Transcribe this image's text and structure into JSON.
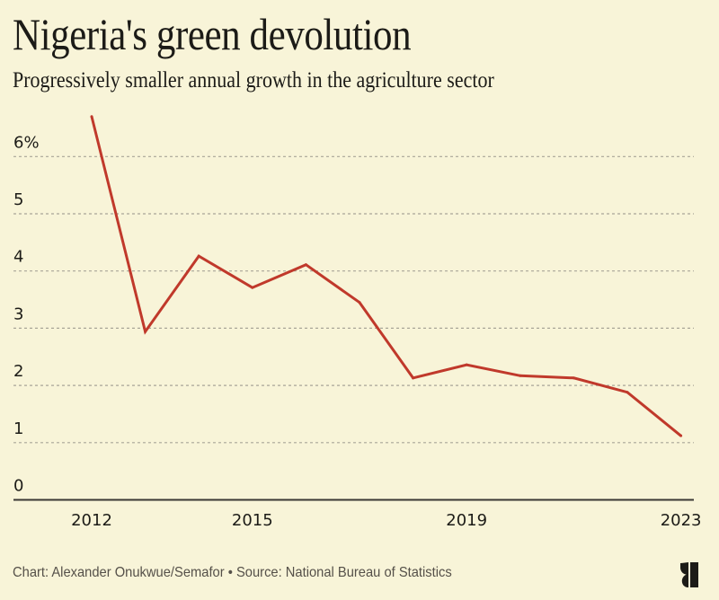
{
  "header": {
    "title": "Nigeria's green devolution",
    "subtitle": "Progressively smaller annual growth in the agriculture sector"
  },
  "footer": {
    "credit": "Chart: Alexander Onukwue/Semafor • Source: National Bureau of Statistics",
    "logo_icon": "semafor-logo-icon"
  },
  "colors": {
    "background": "#f8f4d8",
    "line": "#c0392b",
    "grid": "#a8a597",
    "axis": "#3a3833",
    "text": "#1c1b17"
  },
  "chart_data": {
    "type": "line",
    "title": "Nigeria's green devolution",
    "subtitle": "Progressively smaller annual growth in the agriculture sector",
    "xlabel": "",
    "ylabel": "",
    "x": [
      2012,
      2013,
      2014,
      2015,
      2016,
      2017,
      2018,
      2019,
      2020,
      2021,
      2022,
      2023
    ],
    "series": [
      {
        "name": "Agriculture sector annual growth (%)",
        "values": [
          6.7,
          2.94,
          4.26,
          3.71,
          4.11,
          3.45,
          2.13,
          2.36,
          2.17,
          2.13,
          1.88,
          1.12
        ]
      }
    ],
    "xlim": [
      2012,
      2023
    ],
    "ylim": [
      0,
      6.7
    ],
    "x_ticks": [
      2012,
      2015,
      2019,
      2023
    ],
    "x_tick_labels": [
      "2012",
      "2015",
      "2019",
      "2023"
    ],
    "y_ticks": [
      0,
      1,
      2,
      3,
      4,
      5,
      6
    ],
    "y_tick_labels": [
      "0",
      "1",
      "2",
      "3",
      "4",
      "5",
      "6%"
    ],
    "grid": true,
    "legend": "none"
  }
}
